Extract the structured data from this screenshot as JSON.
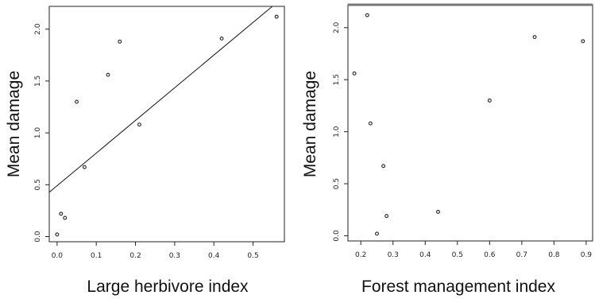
{
  "chart_data": [
    {
      "type": "scatter",
      "xlabel": "Large herbivore  index",
      "ylabel": "Mean damage",
      "xlim": [
        -0.02,
        0.58
      ],
      "ylim": [
        -0.05,
        2.22
      ],
      "xticks": [
        0.0,
        0.1,
        0.2,
        0.3,
        0.4,
        0.5
      ],
      "xtick_labels": [
        "0.0",
        "0.1",
        "0.2",
        "0.3",
        "0.4",
        "0.5"
      ],
      "yticks": [
        0.0,
        0.5,
        1.0,
        1.5,
        2.0
      ],
      "ytick_labels": [
        "0.0",
        "0.5",
        "1.0",
        "1.5",
        "2.0"
      ],
      "points": [
        {
          "x": 0.0,
          "y": 0.02
        },
        {
          "x": 0.01,
          "y": 0.22
        },
        {
          "x": 0.02,
          "y": 0.18
        },
        {
          "x": 0.05,
          "y": 1.3
        },
        {
          "x": 0.07,
          "y": 0.67
        },
        {
          "x": 0.13,
          "y": 1.56
        },
        {
          "x": 0.16,
          "y": 1.88
        },
        {
          "x": 0.21,
          "y": 1.08
        },
        {
          "x": 0.42,
          "y": 1.91
        },
        {
          "x": 0.56,
          "y": 2.12
        }
      ],
      "regression_line": {
        "intercept": 0.49,
        "slope": 3.15
      },
      "grid": false
    },
    {
      "type": "scatter",
      "xlabel": "Forest management  index",
      "ylabel": "Mean damage",
      "xlim": [
        0.16,
        0.92
      ],
      "ylim": [
        -0.05,
        2.22
      ],
      "xticks": [
        0.2,
        0.3,
        0.4,
        0.5,
        0.6,
        0.7,
        0.8,
        0.9
      ],
      "xtick_labels": [
        "0.2",
        "0.3",
        "0.4",
        "0.5",
        "0.6",
        "0.7",
        "0.8",
        "0.9"
      ],
      "yticks": [
        0.0,
        0.5,
        1.0,
        1.5,
        2.0
      ],
      "ytick_labels": [
        "0.0",
        "0.5",
        "1.0",
        "1.5",
        "2.0"
      ],
      "points": [
        {
          "x": 0.18,
          "y": 1.56
        },
        {
          "x": 0.22,
          "y": 2.12
        },
        {
          "x": 0.23,
          "y": 1.08
        },
        {
          "x": 0.25,
          "y": 0.02
        },
        {
          "x": 0.27,
          "y": 0.67
        },
        {
          "x": 0.28,
          "y": 0.19
        },
        {
          "x": 0.44,
          "y": 0.23
        },
        {
          "x": 0.6,
          "y": 1.3
        },
        {
          "x": 0.74,
          "y": 1.91
        },
        {
          "x": 0.89,
          "y": 1.87
        }
      ],
      "grid": false
    }
  ]
}
